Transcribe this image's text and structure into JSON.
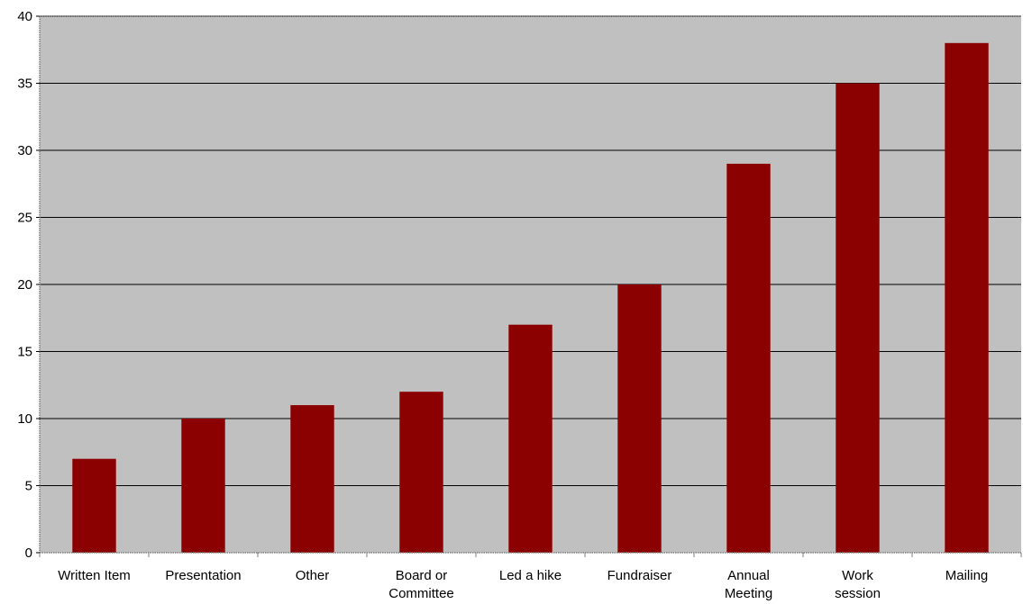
{
  "chart_data": {
    "type": "bar",
    "categories": [
      [
        "Written Item"
      ],
      [
        "Presentation"
      ],
      [
        "Other"
      ],
      [
        "Board or",
        "Committee"
      ],
      [
        "Led a hike"
      ],
      [
        "Fundraiser"
      ],
      [
        "Annual",
        "Meeting"
      ],
      [
        "Work",
        "session"
      ],
      [
        "Mailing"
      ]
    ],
    "values": [
      7,
      10,
      11,
      12,
      17,
      20,
      29,
      35,
      38
    ],
    "ylim": [
      0,
      40
    ],
    "yticks": [
      0,
      5,
      10,
      15,
      20,
      25,
      30,
      35,
      40
    ],
    "grid": true,
    "legend": "none",
    "title": "",
    "xlabel": "",
    "ylabel": ""
  },
  "colors": {
    "bar": "#8b0000",
    "plot_background": "#c0c0c0",
    "gridline": "#000000",
    "axis": "#808080"
  }
}
